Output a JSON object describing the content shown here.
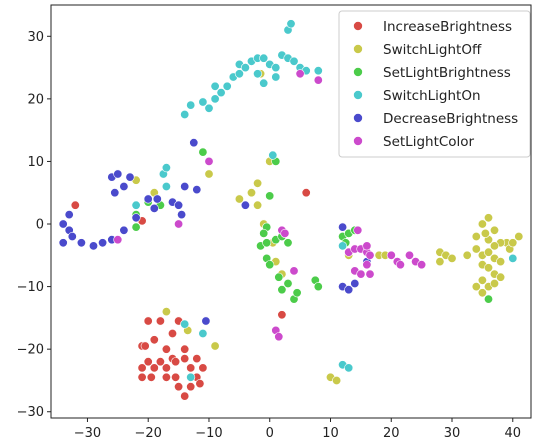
{
  "chart_data": {
    "type": "scatter",
    "title": "",
    "xlabel": "",
    "ylabel": "",
    "xlim": [
      -36,
      43
    ],
    "ylim": [
      -31,
      35
    ],
    "xticks": [
      -30,
      -20,
      -10,
      0,
      10,
      20,
      30,
      40
    ],
    "yticks": [
      -30,
      -20,
      -10,
      0,
      10,
      20,
      30
    ],
    "xtick_labels": [
      "−30",
      "−20",
      "−10",
      "0",
      "10",
      "20",
      "30",
      "40"
    ],
    "ytick_labels": [
      "−30",
      "−20",
      "−10",
      "0",
      "10",
      "20",
      "30"
    ],
    "grid": false,
    "legend_position": "top-right",
    "series": [
      {
        "name": "IncreaseBrightness",
        "color": "#d84a44",
        "points": [
          [
            -32,
            3
          ],
          [
            -20,
            -15.5
          ],
          [
            -18,
            -15.5
          ],
          [
            -15,
            -15.5
          ],
          [
            -16,
            -17.5
          ],
          [
            -19,
            -18.5
          ],
          [
            -21,
            -19.5
          ],
          [
            -20.5,
            -19.5
          ],
          [
            -17,
            -20
          ],
          [
            -14,
            -20
          ],
          [
            -16,
            -21.5
          ],
          [
            -14,
            -21.5
          ],
          [
            -12,
            -21.5
          ],
          [
            -20,
            -22
          ],
          [
            -18,
            -22
          ],
          [
            -15.5,
            -22
          ],
          [
            -21,
            -23
          ],
          [
            -19,
            -23
          ],
          [
            -17,
            -23
          ],
          [
            -13,
            -23
          ],
          [
            -11,
            -23
          ],
          [
            -21,
            -24.5
          ],
          [
            -19.5,
            -24.5
          ],
          [
            -17,
            -24.5
          ],
          [
            -15.5,
            -24.5
          ],
          [
            -12,
            -24.5
          ],
          [
            -15,
            -26
          ],
          [
            -13,
            -26
          ],
          [
            -11.5,
            -25.5
          ],
          [
            -14,
            -27.5
          ],
          [
            2,
            -14.5
          ],
          [
            6,
            5
          ],
          [
            -21,
            0.5
          ]
        ]
      },
      {
        "name": "SwitchLightOff",
        "color": "#c9c94a",
        "points": [
          [
            -22,
            7
          ],
          [
            -17,
            -14
          ],
          [
            -13.5,
            -17
          ],
          [
            -9,
            -19.5
          ],
          [
            -19,
            5
          ],
          [
            -10,
            8
          ],
          [
            -5,
            4
          ],
          [
            -3,
            5
          ],
          [
            -2,
            6.5
          ],
          [
            0,
            10
          ],
          [
            -2,
            3
          ],
          [
            -1,
            0
          ],
          [
            0.5,
            -3
          ],
          [
            1,
            -6
          ],
          [
            2,
            -8
          ],
          [
            -1.5,
            24
          ],
          [
            10,
            -24.5
          ],
          [
            11,
            -25
          ],
          [
            13,
            -5
          ],
          [
            15,
            -4
          ],
          [
            16,
            -3.5
          ],
          [
            18,
            -5
          ],
          [
            19,
            -5
          ],
          [
            28,
            -4.5
          ],
          [
            29,
            -5
          ],
          [
            30,
            -5.5
          ],
          [
            28,
            -6
          ],
          [
            32.5,
            -5
          ],
          [
            34,
            -4
          ],
          [
            35,
            -5
          ],
          [
            36,
            -4.5
          ],
          [
            37,
            -5.5
          ],
          [
            38,
            -6
          ],
          [
            35,
            -6.5
          ],
          [
            36,
            -7
          ],
          [
            37,
            -8
          ],
          [
            34,
            -10
          ],
          [
            35,
            -9
          ],
          [
            36,
            -10
          ],
          [
            37,
            -9.5
          ],
          [
            38,
            -8.5
          ],
          [
            35,
            -11
          ],
          [
            35,
            0
          ],
          [
            36,
            1
          ],
          [
            37,
            -1
          ],
          [
            34,
            -2
          ],
          [
            36,
            -2.5
          ],
          [
            39,
            -3
          ],
          [
            39.5,
            -4
          ],
          [
            38,
            -3
          ],
          [
            37,
            -3.5
          ],
          [
            40,
            -3
          ],
          [
            41,
            -2
          ],
          [
            35.5,
            -1.5
          ]
        ]
      },
      {
        "name": "SetLightBrightness",
        "color": "#4ccc4a",
        "points": [
          [
            -22,
            1.5
          ],
          [
            -20,
            3.5
          ],
          [
            -18,
            3
          ],
          [
            -22,
            -0.5
          ],
          [
            -11,
            11.5
          ],
          [
            1,
            10
          ],
          [
            0,
            4.5
          ],
          [
            -0.5,
            -0.5
          ],
          [
            -1,
            -1.5
          ],
          [
            -1.5,
            -3.5
          ],
          [
            -0.5,
            -3
          ],
          [
            1,
            -2.5
          ],
          [
            2,
            -2
          ],
          [
            3,
            -3
          ],
          [
            -0.5,
            -5.5
          ],
          [
            0,
            -6.5
          ],
          [
            1.5,
            -8.5
          ],
          [
            3,
            -9.5
          ],
          [
            4,
            -12
          ],
          [
            4.5,
            -11
          ],
          [
            2,
            -10.5
          ],
          [
            7.5,
            -9
          ],
          [
            8,
            -10
          ],
          [
            12,
            -2
          ],
          [
            13,
            -1.5
          ],
          [
            14,
            -1
          ],
          [
            12.5,
            -3
          ],
          [
            36,
            -12
          ]
        ]
      },
      {
        "name": "SwitchLightOn",
        "color": "#4ac9cc",
        "points": [
          [
            -17.5,
            8
          ],
          [
            -17,
            9
          ],
          [
            -22,
            3
          ],
          [
            -17,
            6
          ],
          [
            -14,
            -16
          ],
          [
            -11,
            -17.5
          ],
          [
            -13,
            -24.5
          ],
          [
            -14,
            17.5
          ],
          [
            -13,
            19
          ],
          [
            -11,
            19.5
          ],
          [
            -10,
            18.5
          ],
          [
            -9,
            20
          ],
          [
            -8,
            21
          ],
          [
            -7,
            22
          ],
          [
            -6,
            23.5
          ],
          [
            -5,
            24
          ],
          [
            -5,
            25.5
          ],
          [
            -4,
            25
          ],
          [
            -3,
            26
          ],
          [
            -2,
            26.5
          ],
          [
            -1,
            26.5
          ],
          [
            -2,
            24
          ],
          [
            -1,
            22.5
          ],
          [
            0,
            25.5
          ],
          [
            1,
            23.5
          ],
          [
            2,
            27
          ],
          [
            1,
            25
          ],
          [
            3,
            26.5
          ],
          [
            4,
            26
          ],
          [
            5,
            25
          ],
          [
            6,
            24.5
          ],
          [
            8,
            24.5
          ],
          [
            3,
            31
          ],
          [
            3.5,
            32
          ],
          [
            0.5,
            11
          ],
          [
            -9,
            22
          ],
          [
            12,
            -22.5
          ],
          [
            13,
            -23
          ],
          [
            12,
            -3.5
          ],
          [
            40,
            -5.5
          ]
        ]
      },
      {
        "name": "DecreaseBrightness",
        "color": "#4a4acc",
        "points": [
          [
            -34,
            0
          ],
          [
            -33,
            -1
          ],
          [
            -32.5,
            -2
          ],
          [
            -34,
            -3
          ],
          [
            -33,
            1.5
          ],
          [
            -31,
            -3
          ],
          [
            -29,
            -3.5
          ],
          [
            -27.5,
            -3
          ],
          [
            -26,
            -2.5
          ],
          [
            -24,
            -1
          ],
          [
            -22,
            1
          ],
          [
            -20,
            4
          ],
          [
            -18.5,
            4
          ],
          [
            -16,
            3.5
          ],
          [
            -15,
            3
          ],
          [
            -14.5,
            1.5
          ],
          [
            -14,
            6
          ],
          [
            -26,
            7.5
          ],
          [
            -25,
            8
          ],
          [
            -23,
            7.5
          ],
          [
            -24,
            6
          ],
          [
            -25.5,
            5
          ],
          [
            -19,
            2.5
          ],
          [
            -12.5,
            13
          ],
          [
            -12,
            5.5
          ],
          [
            -10.5,
            -15.5
          ],
          [
            -4,
            3
          ],
          [
            12,
            -10
          ],
          [
            13,
            -10.5
          ],
          [
            14,
            -9.5
          ],
          [
            14,
            -7.5
          ],
          [
            12,
            -0.5
          ],
          [
            16,
            -6
          ]
        ]
      },
      {
        "name": "SetLightColor",
        "color": "#cc4acc",
        "points": [
          [
            -25,
            -2.5
          ],
          [
            -15,
            0
          ],
          [
            -10,
            10
          ],
          [
            8,
            23
          ],
          [
            5,
            24
          ],
          [
            1,
            -17
          ],
          [
            1.5,
            -18
          ],
          [
            2,
            -1
          ],
          [
            2.5,
            -1.5
          ],
          [
            4,
            -7.5
          ],
          [
            13,
            -4.5
          ],
          [
            14,
            -4
          ],
          [
            15,
            -4
          ],
          [
            16,
            -4.5
          ],
          [
            16.5,
            -5
          ],
          [
            16,
            -6.5
          ],
          [
            16.5,
            -8
          ],
          [
            14,
            -7.5
          ],
          [
            15,
            -8
          ],
          [
            16,
            -3.5
          ],
          [
            20,
            -5
          ],
          [
            21,
            -6
          ],
          [
            21.5,
            -6.5
          ],
          [
            23,
            -5
          ],
          [
            24,
            -6
          ],
          [
            25,
            -6.5
          ],
          [
            14.5,
            -1
          ]
        ]
      }
    ]
  }
}
